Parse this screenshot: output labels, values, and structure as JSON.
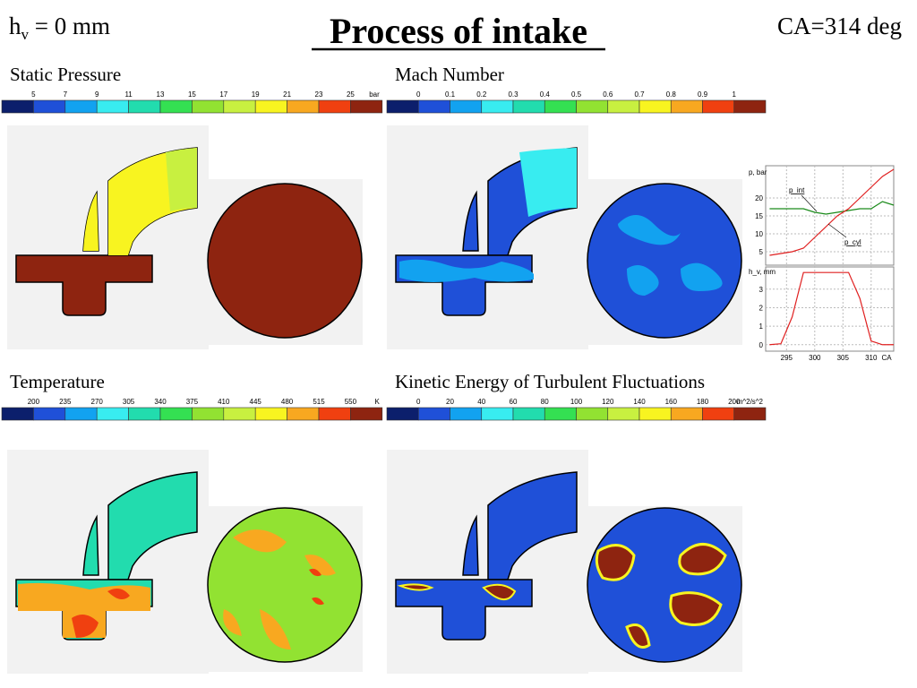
{
  "header": {
    "valve_lift": {
      "symbol": "h",
      "subscript": "v",
      "rest": " = 0 mm"
    },
    "title": "Process of intake",
    "crank_angle": "CA=314 deg"
  },
  "panels": [
    {
      "title": "Static Pressure",
      "labels": [
        5,
        7,
        9,
        11,
        13,
        15,
        17,
        19,
        21,
        23,
        25
      ],
      "unit": "bar"
    },
    {
      "title": "Mach Number",
      "labels": [
        0,
        0.1,
        0.2,
        0.3,
        0.4,
        0.5,
        0.6,
        0.7,
        0.8,
        0.9,
        1
      ],
      "unit": ""
    },
    {
      "title": "Temperature",
      "labels": [
        200,
        235,
        270,
        305,
        340,
        375,
        410,
        445,
        480,
        515,
        550
      ],
      "unit": "K"
    },
    {
      "title": "Kinetic Energy of Turbulent Fluctuations",
      "labels": [
        0,
        20,
        40,
        60,
        80,
        100,
        120,
        140,
        160,
        180,
        200
      ],
      "unit": "m^2/s^2"
    }
  ],
  "colorbar_colors": [
    "#0c1f6c",
    "#1f50d8",
    "#12a2f0",
    "#38ecf0",
    "#22dcae",
    "#34e052",
    "#92e232",
    "#c8f040",
    "#f8f420",
    "#f8a820",
    "#f04010",
    "#8e2410"
  ],
  "inset": {
    "p_label": "p, bar",
    "h_label": "h_v, mm",
    "x_label": "CA",
    "xlim": [
      291.3,
      314
    ],
    "xticks": [
      295,
      300,
      305,
      310
    ],
    "p_ylim": [
      1.25,
      29
    ],
    "p_yticks": [
      5,
      10,
      15,
      20
    ],
    "h_ylim": [
      -0.35,
      4.2
    ],
    "h_yticks": [
      0,
      1,
      2,
      3
    ],
    "x": [
      292,
      294,
      296,
      298,
      300,
      302,
      304,
      306,
      308,
      310,
      312,
      314
    ],
    "series": [
      {
        "name": "p_int",
        "color": "#1a8a1a",
        "values": [
          17,
          17,
          17,
          17,
          16,
          15.5,
          16,
          16.5,
          17,
          17,
          19,
          18
        ]
      },
      {
        "name": "p_cyl",
        "color": "#e02020",
        "values": [
          4,
          4.5,
          5,
          6,
          9,
          12,
          15,
          17,
          20,
          23,
          26,
          28
        ]
      },
      {
        "name": "h_v",
        "color": "#e02020",
        "values": [
          0,
          0.05,
          1.5,
          3.9,
          3.9,
          3.9,
          3.9,
          3.9,
          2.5,
          0.2,
          0,
          0
        ]
      }
    ]
  }
}
